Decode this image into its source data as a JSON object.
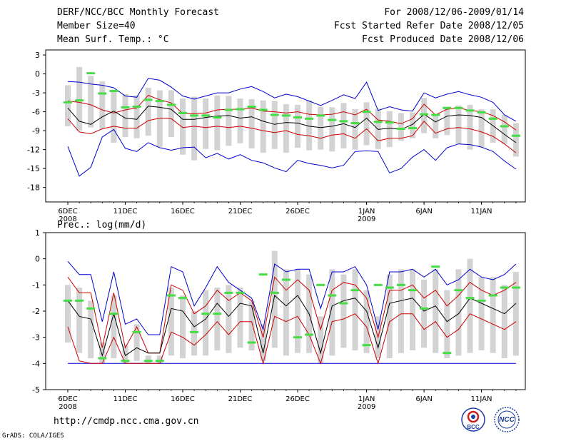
{
  "header": {
    "left": [
      "DERF/NCC/BCC Monthly Forecast",
      "Member Size=40",
      "Mean Surf. Temp.: °C"
    ],
    "right": [
      "For 2008/12/06-2009/01/14",
      "Fcst Started Refer Date 2008/12/05",
      "Fcst Produced Date 2008/12/06"
    ]
  },
  "footer": {
    "url": "http://cmdp.ncc.cma.gov.cn",
    "credit": "GrADS: COLA/IGES"
  },
  "logos": [
    {
      "icon": "bcc-logo-icon",
      "label": "BCC"
    },
    {
      "icon": "ncc-logo-icon",
      "label": "NCC"
    }
  ],
  "colors": {
    "max_min": "#0000cc",
    "spread": "#cc0000",
    "mean": "#000000",
    "box": "#d3d3d3",
    "marker": "#44dd44"
  },
  "chart_data": [
    {
      "type": "box",
      "title": "Mean Surf. Temp.: °C",
      "ylim": [
        -20,
        3
      ],
      "yticks": [
        3,
        0,
        -3,
        -6,
        -9,
        -12,
        -15,
        -18
      ],
      "xticks": [
        {
          "i": 0,
          "label": "6DEC",
          "year": "2008"
        },
        {
          "i": 5,
          "label": "11DEC"
        },
        {
          "i": 10,
          "label": "16DEC"
        },
        {
          "i": 15,
          "label": "21DEC"
        },
        {
          "i": 20,
          "label": "26DEC"
        },
        {
          "i": 26,
          "label": "1JAN",
          "year": "2009"
        },
        {
          "i": 31,
          "label": "6JAN"
        },
        {
          "i": 36,
          "label": "11JAN"
        }
      ],
      "series": {
        "max": [
          -1.2,
          -1.3,
          -1.6,
          -1.8,
          -2.2,
          -3.5,
          -3.7,
          -0.7,
          -1.0,
          -2.1,
          -3.5,
          -4.0,
          -3.5,
          -3.0,
          -3.0,
          -2.4,
          -2.0,
          -2.8,
          -3.8,
          -3.2,
          -3.6,
          -4.3,
          -5.0,
          -4.2,
          -3.3,
          -3.9,
          -1.3,
          -5.8,
          -5.2,
          -5.7,
          -5.9,
          -3.0,
          -3.8,
          -3.2,
          -2.8,
          -3.3,
          -3.7,
          -4.5,
          -6.5,
          -7.5
        ],
        "upper": [
          -4.3,
          -4.5,
          -4.9,
          -5.7,
          -6.2,
          -5.7,
          -5.4,
          -3.4,
          -4.1,
          -4.6,
          -6.3,
          -6.3,
          -6.2,
          -5.7,
          -5.6,
          -5.6,
          -5.4,
          -5.9,
          -6.0,
          -6.2,
          -6.0,
          -6.4,
          -6.5,
          -6.4,
          -6.0,
          -6.5,
          -5.6,
          -7.3,
          -7.5,
          -7.9,
          -7.1,
          -4.8,
          -6.5,
          -5.6,
          -5.4,
          -5.8,
          -6.0,
          -6.6,
          -7.6,
          -8.9
        ],
        "mean": [
          -5.4,
          -7.5,
          -8.0,
          -6.8,
          -5.9,
          -7.0,
          -7.2,
          -5.1,
          -5.3,
          -5.6,
          -7.2,
          -7.2,
          -6.9,
          -6.7,
          -6.6,
          -7.0,
          -6.8,
          -7.5,
          -8.0,
          -7.7,
          -7.8,
          -8.3,
          -8.5,
          -8.3,
          -7.9,
          -8.5,
          -7.0,
          -8.8,
          -8.6,
          -8.8,
          -8.0,
          -6.4,
          -7.6,
          -6.7,
          -6.5,
          -6.6,
          -6.9,
          -8.2,
          -9.6,
          -10.9
        ],
        "lower": [
          -7.1,
          -9.2,
          -9.5,
          -8.7,
          -8.3,
          -8.6,
          -8.6,
          -7.4,
          -7.0,
          -7.1,
          -8.5,
          -8.3,
          -8.5,
          -8.3,
          -8.5,
          -8.3,
          -8.6,
          -9.0,
          -9.3,
          -9.0,
          -9.6,
          -9.8,
          -10.2,
          -9.7,
          -9.5,
          -10.2,
          -8.7,
          -10.6,
          -10.2,
          -10.2,
          -9.8,
          -7.5,
          -9.4,
          -8.7,
          -8.5,
          -8.7,
          -9.2,
          -9.9,
          -11.1,
          -12.5
        ],
        "min": [
          -11.5,
          -16.2,
          -14.8,
          -10.0,
          -8.8,
          -11.8,
          -12.3,
          -10.9,
          -11.7,
          -12.1,
          -11.7,
          -11.6,
          -13.3,
          -12.6,
          -13.5,
          -12.8,
          -13.7,
          -14.1,
          -14.9,
          -15.5,
          -13.7,
          -14.2,
          -14.5,
          -14.9,
          -14.5,
          -12.3,
          -12.2,
          -12.3,
          -15.7,
          -15.0,
          -13.2,
          -12.0,
          -13.7,
          -11.7,
          -11.1,
          -11.2,
          -11.6,
          -12.3,
          -13.8,
          -15.1
        ],
        "box_top": [
          -1.8,
          1.1,
          -0.3,
          -1.2,
          -2.6,
          -3.2,
          -3.4,
          -2.2,
          -2.6,
          -2.6,
          -3.9,
          -3.6,
          -3.9,
          -3.4,
          -3.5,
          -3.9,
          -4.0,
          -4.2,
          -4.3,
          -4.8,
          -4.9,
          -4.2,
          -5.2,
          -5.3,
          -4.6,
          -5.6,
          -4.5,
          -5.5,
          -5.9,
          -6.2,
          -6.1,
          -3.8,
          -6.4,
          -5.2,
          -5.0,
          -4.9,
          -5.6,
          -5.6,
          -6.5,
          -7.8
        ],
        "box_bottom": [
          -8.3,
          -9.0,
          -8.5,
          -8.7,
          -10.9,
          -10.0,
          -10.2,
          -9.8,
          -11.6,
          -10.0,
          -12.8,
          -13.7,
          -11.9,
          -12.1,
          -11.4,
          -11.0,
          -11.8,
          -12.5,
          -11.9,
          -12.5,
          -11.7,
          -12.1,
          -12.0,
          -12.3,
          -11.8,
          -12.0,
          -11.3,
          -11.9,
          -11.6,
          -10.6,
          -10.2,
          -9.4,
          -10.2,
          -9.7,
          -11.1,
          -12.0,
          -11.6,
          -10.9,
          -11.1,
          -13.1
        ],
        "marker": [
          -4.5,
          -4.2,
          0.1,
          -3.1,
          -2.7,
          -5.3,
          -5.2,
          -4.1,
          -4.3,
          -4.9,
          -6.2,
          -6.6,
          -6.6,
          -6.9,
          -5.7,
          -5.6,
          -5.2,
          -5.7,
          -6.5,
          -6.6,
          -6.9,
          -7.1,
          -6.6,
          -7.3,
          -7.5,
          -7.8,
          -6.0,
          -7.6,
          -7.7,
          -8.7,
          -8.6,
          -6.4,
          -6.5,
          -5.4,
          -5.4,
          -5.8,
          -6.1,
          -7.1,
          -8.3,
          -9.8
        ]
      }
    },
    {
      "type": "box",
      "title": "Prec.: log(mm/d)",
      "ylim": [
        -5,
        1
      ],
      "yticks": [
        1,
        0,
        -1,
        -2,
        -3,
        -4,
        -5
      ],
      "xticks": [
        {
          "i": 0,
          "label": "6DEC",
          "year": "2008"
        },
        {
          "i": 5,
          "label": "11DEC"
        },
        {
          "i": 10,
          "label": "16DEC"
        },
        {
          "i": 15,
          "label": "21DEC"
        },
        {
          "i": 20,
          "label": "26DEC"
        },
        {
          "i": 26,
          "label": "1JAN",
          "year": "2009"
        },
        {
          "i": 31,
          "label": "6JAN"
        },
        {
          "i": 36,
          "label": "11JAN"
        }
      ],
      "series": {
        "max": [
          -0.1,
          -0.6,
          -0.6,
          -2.4,
          -0.5,
          -2.5,
          -2.3,
          -2.9,
          -2.9,
          -0.3,
          -0.5,
          -1.8,
          -1.1,
          -0.3,
          -0.9,
          -1.2,
          -1.5,
          -2.7,
          -0.2,
          -0.5,
          -0.4,
          -0.4,
          -1.9,
          -0.5,
          -0.5,
          -0.3,
          -1.0,
          -2.7,
          -0.5,
          -0.5,
          -0.4,
          -0.7,
          -0.4,
          -1.0,
          -0.8,
          -0.4,
          -0.7,
          -0.8,
          -0.6,
          -0.2
        ],
        "upper": [
          -0.7,
          -1.3,
          -1.3,
          -3.4,
          -1.3,
          -3.4,
          -2.6,
          -3.6,
          -3.6,
          -1.0,
          -1.2,
          -2.1,
          -1.8,
          -1.2,
          -1.6,
          -1.3,
          -1.6,
          -3.0,
          -0.7,
          -1.2,
          -0.8,
          -1.2,
          -2.7,
          -1.2,
          -0.9,
          -1.0,
          -1.5,
          -3.0,
          -1.2,
          -1.2,
          -1.0,
          -1.5,
          -1.2,
          -1.8,
          -1.4,
          -0.9,
          -1.2,
          -1.4,
          -1.2,
          -0.9
        ],
        "mean": [
          -1.6,
          -2.2,
          -2.3,
          -3.7,
          -2.1,
          -3.7,
          -3.4,
          -3.6,
          -3.6,
          -1.9,
          -2.0,
          -2.6,
          -2.3,
          -1.7,
          -2.2,
          -1.7,
          -1.8,
          -3.6,
          -1.4,
          -1.8,
          -1.4,
          -2.1,
          -3.6,
          -1.8,
          -1.6,
          -1.5,
          -2.0,
          -3.4,
          -1.7,
          -1.6,
          -1.5,
          -2.0,
          -1.8,
          -2.4,
          -2.1,
          -1.5,
          -1.7,
          -1.9,
          -2.1,
          -1.7
        ],
        "lower": [
          -2.6,
          -3.9,
          -4.0,
          -4.0,
          -3.0,
          -4.0,
          -4.0,
          -4.0,
          -4.0,
          -2.8,
          -3.0,
          -3.3,
          -2.9,
          -2.4,
          -2.9,
          -2.4,
          -2.4,
          -4.0,
          -2.2,
          -2.4,
          -2.2,
          -2.9,
          -4.0,
          -2.4,
          -2.3,
          -2.1,
          -2.6,
          -4.0,
          -2.4,
          -2.1,
          -2.1,
          -2.7,
          -2.4,
          -3.0,
          -2.7,
          -2.1,
          -2.3,
          -2.5,
          -2.7,
          -2.4
        ],
        "min": [
          -4.0,
          -4.0,
          -4.0,
          -4.0,
          -4.0,
          -4.0,
          -4.0,
          -4.0,
          -4.0,
          -4.0,
          -4.0,
          -4.0,
          -4.0,
          -4.0,
          -4.0,
          -4.0,
          -4.0,
          -4.0,
          -4.0,
          -4.0,
          -4.0,
          -4.0,
          -4.0,
          -4.0,
          -4.0,
          -4.0,
          -4.0,
          -4.0,
          -4.0,
          -4.0,
          -4.0,
          -4.0,
          -4.0,
          -4.0,
          -4.0,
          -4.0,
          -4.0,
          -4.0,
          -4.0,
          -4.0
        ],
        "box_top": [
          -1.0,
          -1.1,
          -1.6,
          -3.2,
          -1.4,
          -3.3,
          -2.5,
          -3.7,
          -3.7,
          -1.1,
          -1.4,
          -2.0,
          -1.2,
          -1.1,
          -1.0,
          -1.1,
          -1.6,
          -2.5,
          0.3,
          -0.4,
          -0.4,
          -0.6,
          -2.2,
          -0.4,
          -0.6,
          -0.4,
          -1.2,
          -2.2,
          -0.6,
          -0.4,
          -0.4,
          -0.8,
          -0.4,
          -1.2,
          -0.4,
          0.0,
          -0.7,
          -0.7,
          -1.0,
          -0.5
        ],
        "box_bottom": [
          -3.2,
          -3.6,
          -3.8,
          -4.0,
          -3.8,
          -4.0,
          -3.9,
          -4.0,
          -4.0,
          -3.7,
          -3.8,
          -3.7,
          -3.7,
          -3.5,
          -3.6,
          -3.4,
          -3.5,
          -3.9,
          -3.4,
          -3.7,
          -3.6,
          -3.6,
          -4.0,
          -3.7,
          -3.4,
          -3.5,
          -3.6,
          -3.8,
          -3.8,
          -3.6,
          -3.5,
          -3.4,
          -3.6,
          -3.8,
          -3.7,
          -3.6,
          -3.5,
          -3.6,
          -3.8,
          -3.7
        ],
        "marker": [
          -1.6,
          -1.6,
          -1.9,
          -3.8,
          -2.1,
          -3.9,
          -2.8,
          -3.9,
          -3.9,
          -1.4,
          -1.5,
          -2.8,
          -2.1,
          -2.1,
          -1.3,
          -1.3,
          -3.2,
          -0.6,
          -1.3,
          -0.8,
          -3.0,
          -2.9,
          -1.0,
          -1.4,
          -1.7,
          -1.2,
          -3.3,
          -1.0,
          -1.1,
          -1.0,
          -1.2,
          -1.9,
          -0.3,
          -3.6,
          -1.2,
          -1.5,
          -1.6,
          -1.4,
          -1.1,
          -1.1
        ]
      }
    }
  ]
}
